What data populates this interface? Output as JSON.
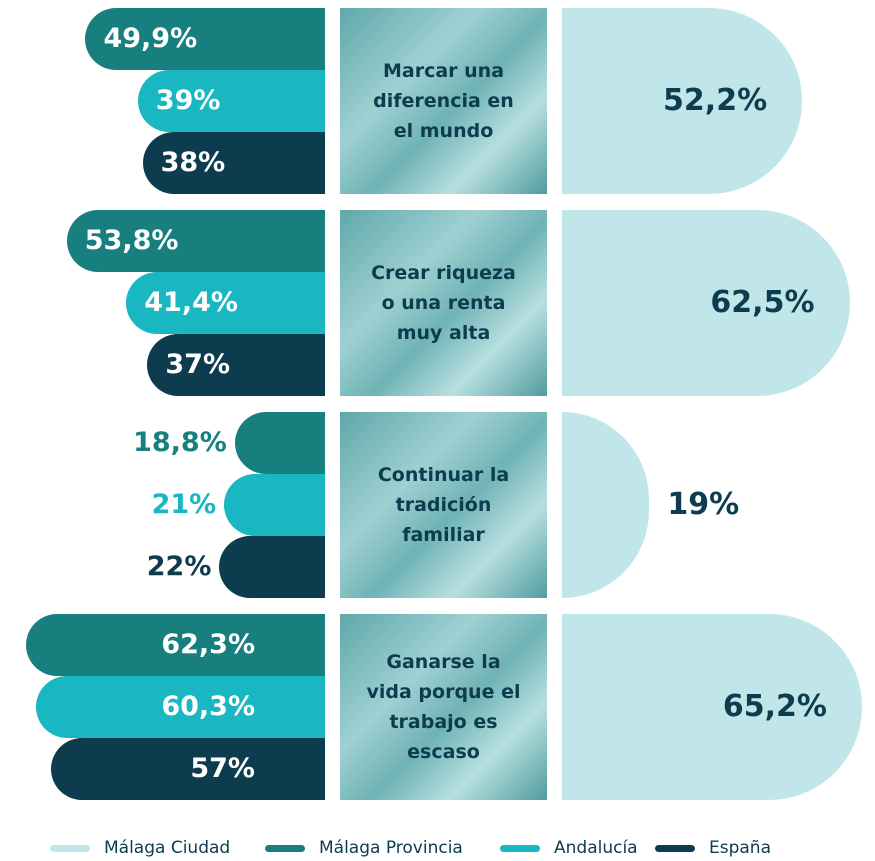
{
  "chart_data": {
    "type": "bar",
    "categories": [
      "Marcar una diferencia en el mundo",
      "Crear riqueza o una renta muy alta",
      "Continuar la tradición familiar",
      "Ganarse la vida porque el trabajo es escaso"
    ],
    "series": [
      {
        "name": "Málaga Ciudad",
        "color": "#c0e6ea",
        "values": [
          52.2,
          62.5,
          19,
          65.2
        ],
        "value_labels": [
          "52,2%",
          "62,5%",
          "19%",
          "65,2%"
        ]
      },
      {
        "name": "Málaga Provincia",
        "color": "#177f7e",
        "values": [
          49.9,
          53.8,
          18.8,
          62.3
        ],
        "value_labels": [
          "49,9%",
          "53,8%",
          "18,8%",
          "62,3%"
        ]
      },
      {
        "name": "Andalucía",
        "color": "#18b7c1",
        "values": [
          39,
          41.4,
          21,
          60.3
        ],
        "value_labels": [
          "39%",
          "41,4%",
          "21%",
          "60,3%"
        ]
      },
      {
        "name": "España",
        "color": "#0c3c4e",
        "values": [
          38,
          37,
          22,
          57
        ],
        "value_labels": [
          "38%",
          "37%",
          "22%",
          "57%"
        ]
      }
    ],
    "legend": "bottom"
  }
}
